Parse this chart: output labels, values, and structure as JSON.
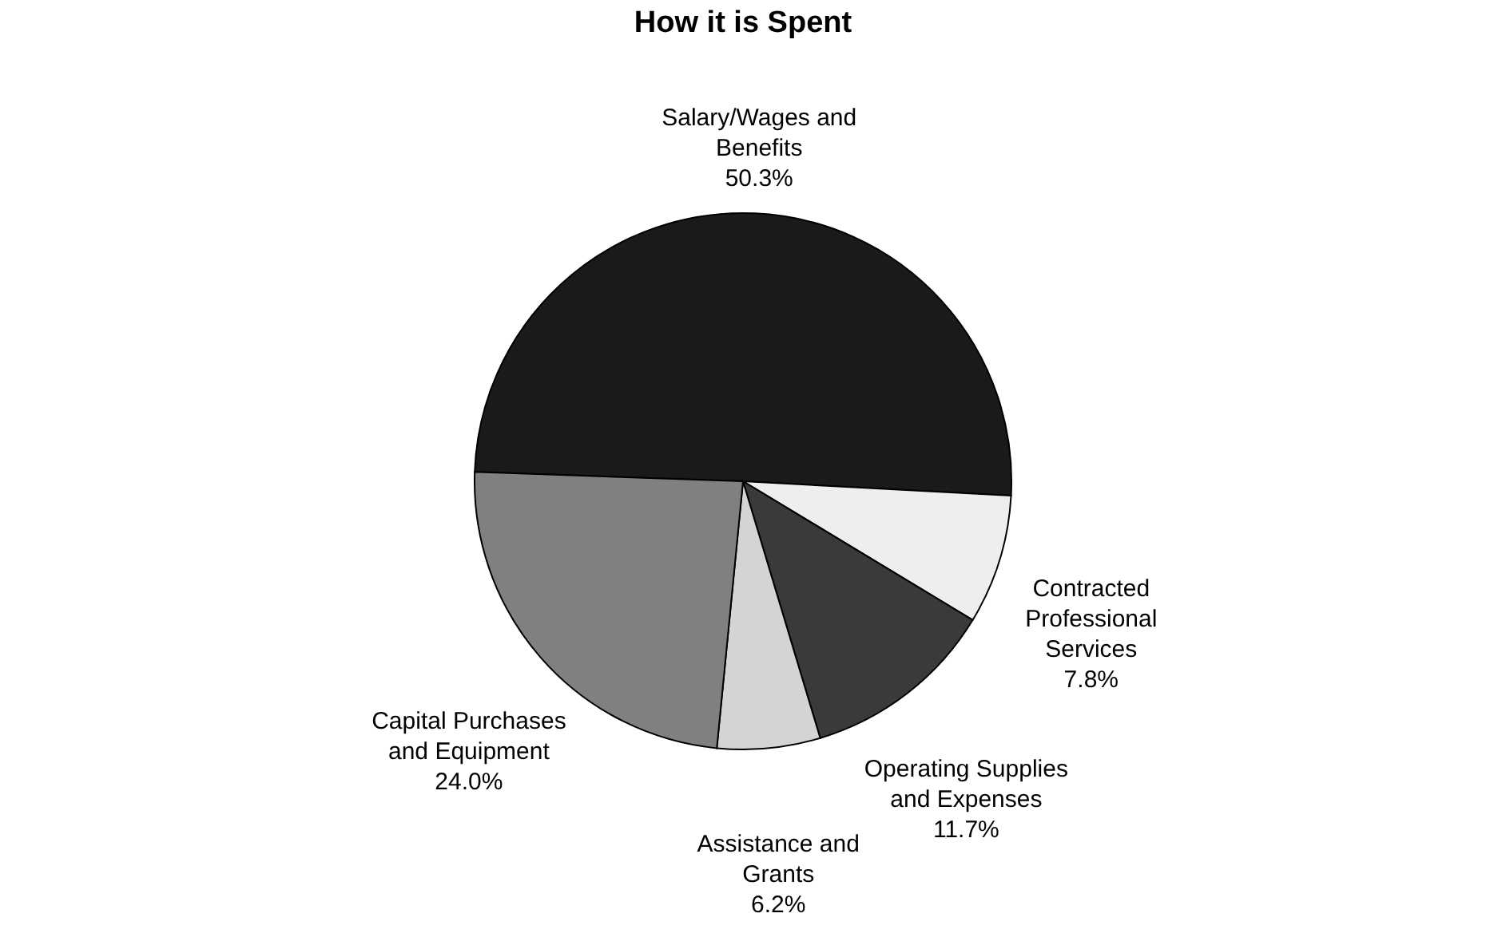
{
  "chart_data": {
    "type": "pie",
    "title": "How it is Spent",
    "categories": [
      "Salary/Wages and Benefits",
      "Contracted Professional Services",
      "Operating Supplies and Expenses",
      "Assistance and Grants",
      "Capital Purchases and Equipment"
    ],
    "values": [
      50.3,
      7.8,
      11.7,
      6.2,
      24.0
    ],
    "colors": [
      "#1a1a1a",
      "#eeeeee",
      "#3a3a3a",
      "#d4d4d4",
      "#808080"
    ],
    "value_labels": [
      "50.3%",
      "7.8%",
      "11.7%",
      "6.2%",
      "24.0%"
    ],
    "legend": false
  }
}
